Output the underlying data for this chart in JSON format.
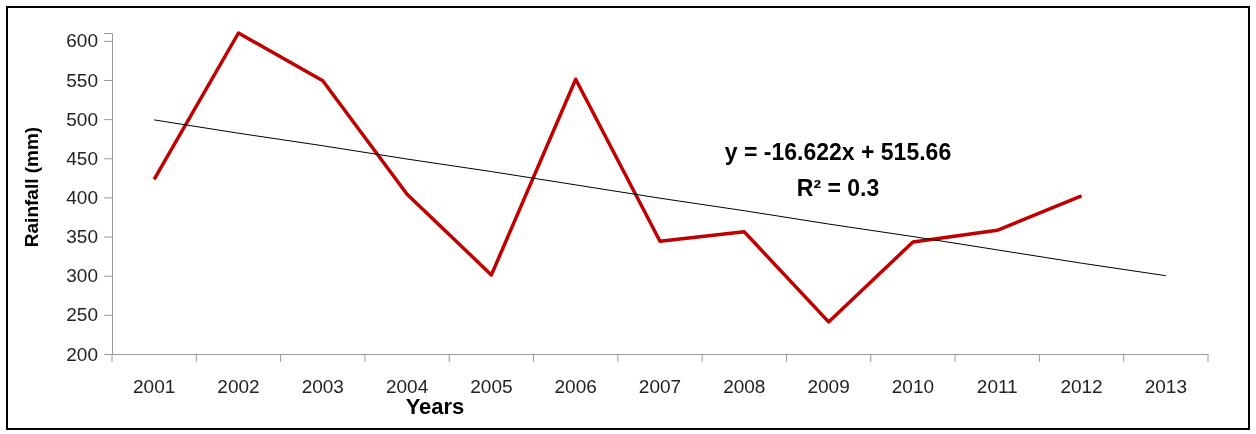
{
  "chart_data": {
    "type": "line",
    "xlabel": "Years",
    "ylabel": "Rainfall (mm)",
    "categories": [
      "2001",
      "2002",
      "2003",
      "2004",
      "2005",
      "2006",
      "2007",
      "2008",
      "2009",
      "2010",
      "2011",
      "2012",
      "2013"
    ],
    "series": [
      {
        "color": "#c00000",
        "values": [
          423,
          610,
          549,
          404,
          301,
          551,
          344,
          356,
          241,
          343,
          358,
          402,
          null
        ]
      },
      {
        "type": "line",
        "color": "#000000",
        "values": [
          499,
          482,
          466,
          449,
          433,
          416,
          399,
          383,
          366,
          350,
          333,
          316,
          300
        ]
      }
    ],
    "ylim": [
      200,
      610
    ],
    "yticks": [
      200,
      250,
      300,
      350,
      400,
      450,
      500,
      550,
      600
    ],
    "annotations": [
      "y = -16.622x + 515.66",
      "R² = 0.3"
    ],
    "grid": false,
    "marker": "none",
    "line_style": "solid"
  }
}
